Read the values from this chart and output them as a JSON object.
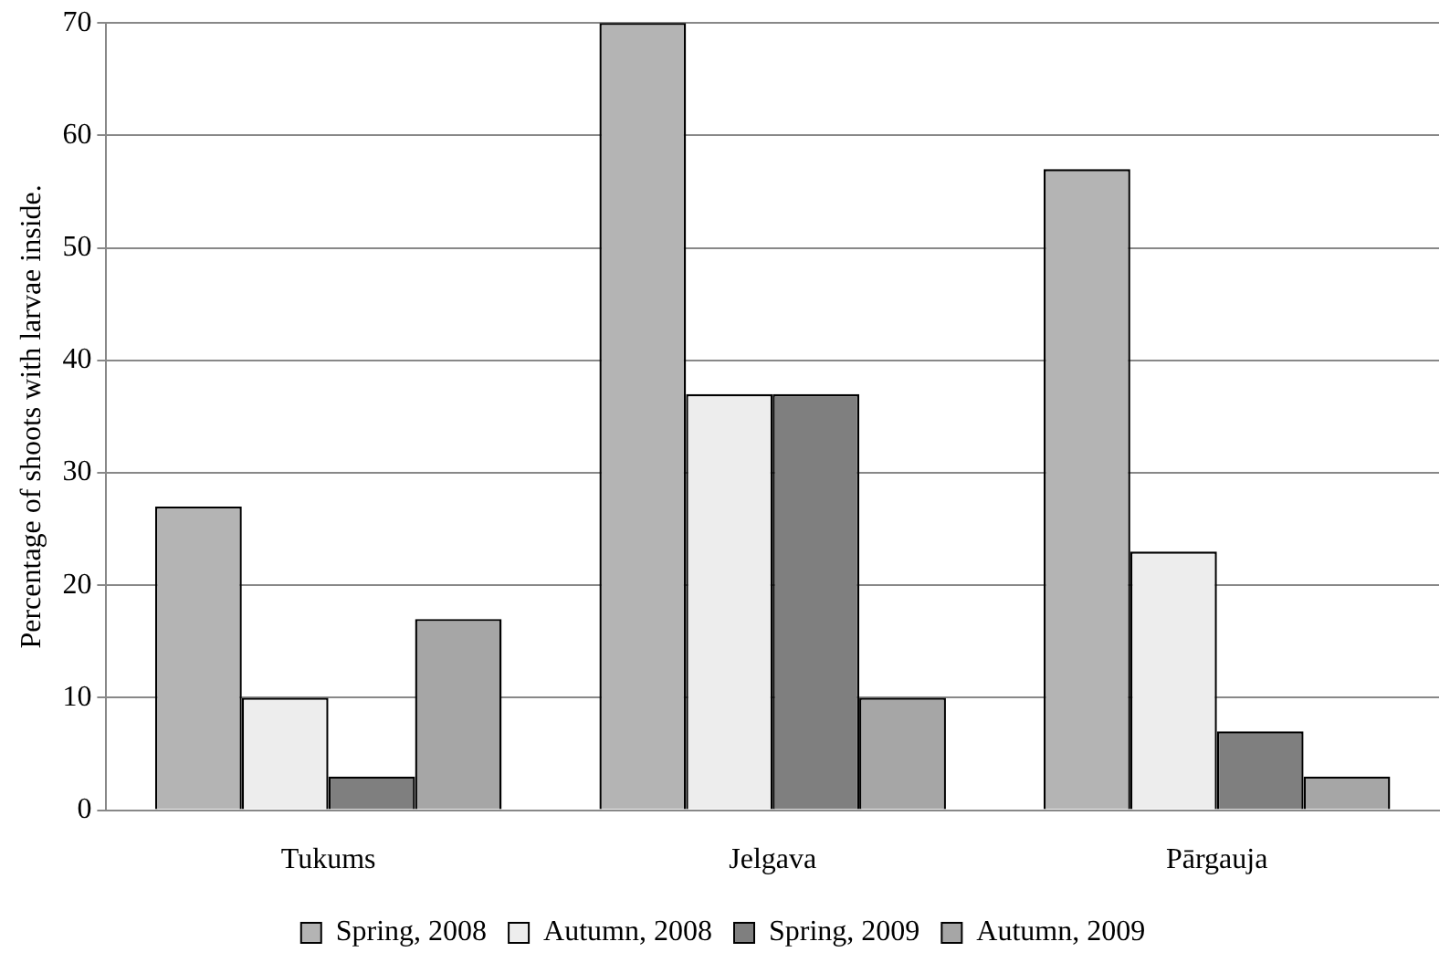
{
  "chart_data": {
    "type": "bar",
    "ylabel": "Percentage of shoots with larvae inside.",
    "categories": [
      "Tukums",
      "Jelgava",
      "Pārgauja"
    ],
    "series": [
      {
        "name": "Spring, 2008",
        "color": "#b4b4b4",
        "values": [
          27,
          70,
          57
        ]
      },
      {
        "name": "Autumn, 2008",
        "color": "#ededed",
        "values": [
          10,
          37,
          23
        ]
      },
      {
        "name": "Spring, 2009",
        "color": "#7f7f7f",
        "values": [
          3,
          37,
          7
        ]
      },
      {
        "name": "Autumn, 2009",
        "color": "#a6a6a6",
        "values": [
          17,
          10,
          3
        ]
      }
    ],
    "ylim": [
      0,
      70
    ],
    "yticks": [
      0,
      10,
      20,
      30,
      40,
      50,
      60,
      70
    ],
    "grid": "y",
    "legend": "bottom"
  }
}
